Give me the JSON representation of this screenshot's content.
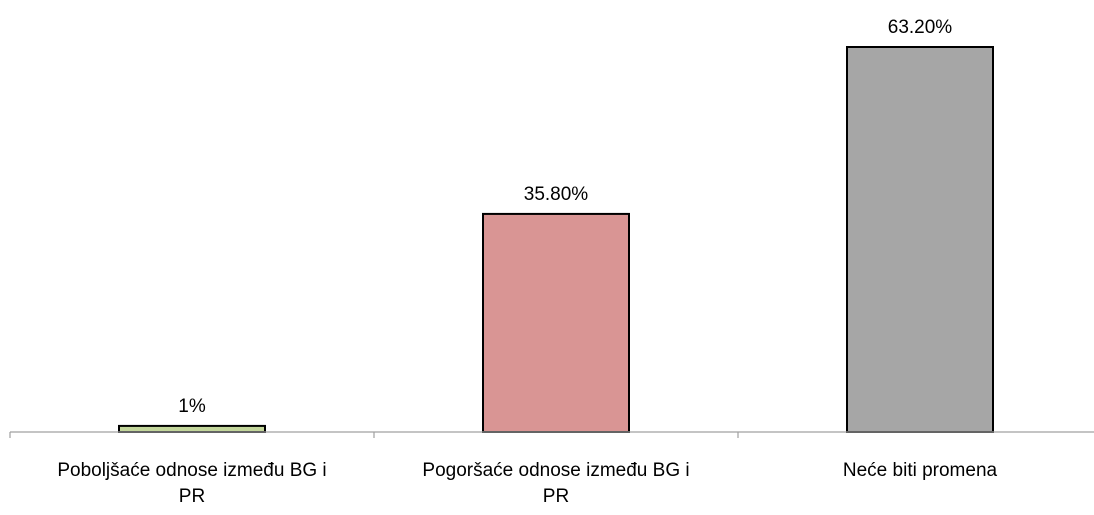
{
  "chart_data": {
    "type": "bar",
    "categories": [
      [
        "Poboljšaće odnose između BG i",
        "PR"
      ],
      [
        "Pogoršaće odnose između BG i",
        "PR"
      ],
      [
        "Neće biti promena"
      ]
    ],
    "values": [
      1,
      35.8,
      63.2
    ],
    "data_labels": [
      "1%",
      "35.80%",
      "63.20%"
    ],
    "colors": [
      "#c3d69b",
      "#d99594",
      "#a6a6a6"
    ],
    "ylim": [
      0,
      63.2
    ],
    "title": "",
    "xlabel": "",
    "ylabel": "",
    "grid": false,
    "legend": "none"
  }
}
